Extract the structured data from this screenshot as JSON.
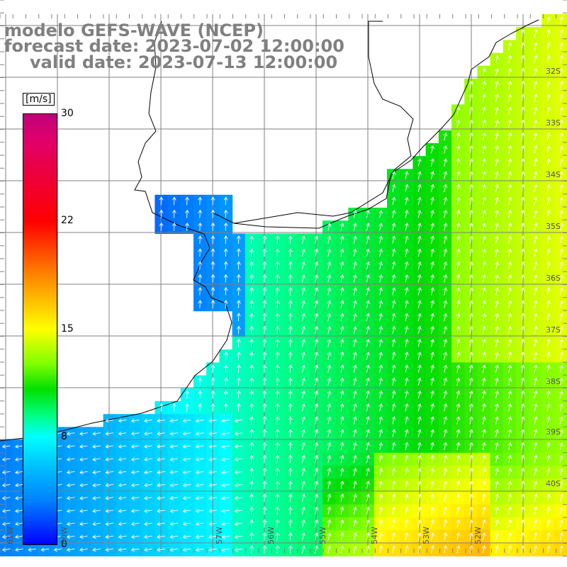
{
  "title": {
    "line1": "modelo GEFS-WAVE (NCEP)",
    "line2": "forecast date: 2023-07-02 12:00:00",
    "line3": "valid date: 2023-07-13 12:00:00"
  },
  "colorbar": {
    "unit": "[m/s]",
    "ticks": [
      "30",
      "22",
      "15",
      "8",
      "0"
    ]
  },
  "lat_labels": [
    "32S",
    "33S",
    "34S",
    "35S",
    "36S",
    "37S",
    "38S",
    "39S",
    "40S"
  ],
  "lon_labels": [
    "61W",
    "60W",
    "57W",
    "56W",
    "55W",
    "54W",
    "53W",
    "52W"
  ],
  "colors": {
    "land": "#ffffff",
    "grid": "#808080",
    "coast": "#000000",
    "arrows": "#ffffff",
    "title_text": "#808080"
  }
}
